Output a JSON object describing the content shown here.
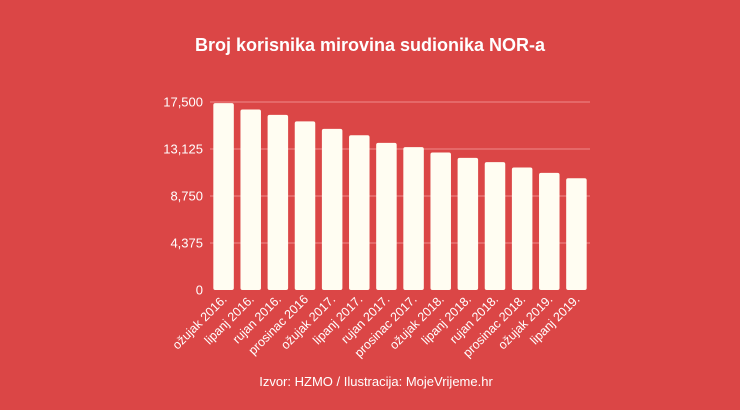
{
  "colors": {
    "background": "#db4646",
    "bar": "#fffdf2",
    "gridline": "#ef8a8a",
    "text": "#ffffff"
  },
  "source": "Izvor: HZMO / Ilustracija: MojeVrijeme.hr",
  "chart_data": {
    "type": "bar",
    "title": "Broj korisnika mirovina sudionika NOR-a",
    "xlabel": "",
    "ylabel": "",
    "ylim": [
      0,
      17500
    ],
    "y_ticks": [
      0,
      4375,
      8750,
      13125,
      17500
    ],
    "y_tick_labels": [
      "0",
      "4,375",
      "8,750",
      "13,125",
      "17,500"
    ],
    "grid": true,
    "categories": [
      "ožujak 2016.",
      "lipanj 2016.",
      "rujan 2016.",
      "prosinac 2016",
      "ožujak 2017.",
      "lipanj 2017.",
      "rujan 2017.",
      "prosinac 2017.",
      "ožujak 2018.",
      "lipanj 2018.",
      "rujan 2018.",
      "prosinac 2018.",
      "ožujak 2019.",
      "lipanj 2019."
    ],
    "values": [
      17400,
      16800,
      16300,
      15700,
      15000,
      14400,
      13700,
      13300,
      12800,
      12300,
      11900,
      11400,
      10900,
      10400
    ]
  }
}
